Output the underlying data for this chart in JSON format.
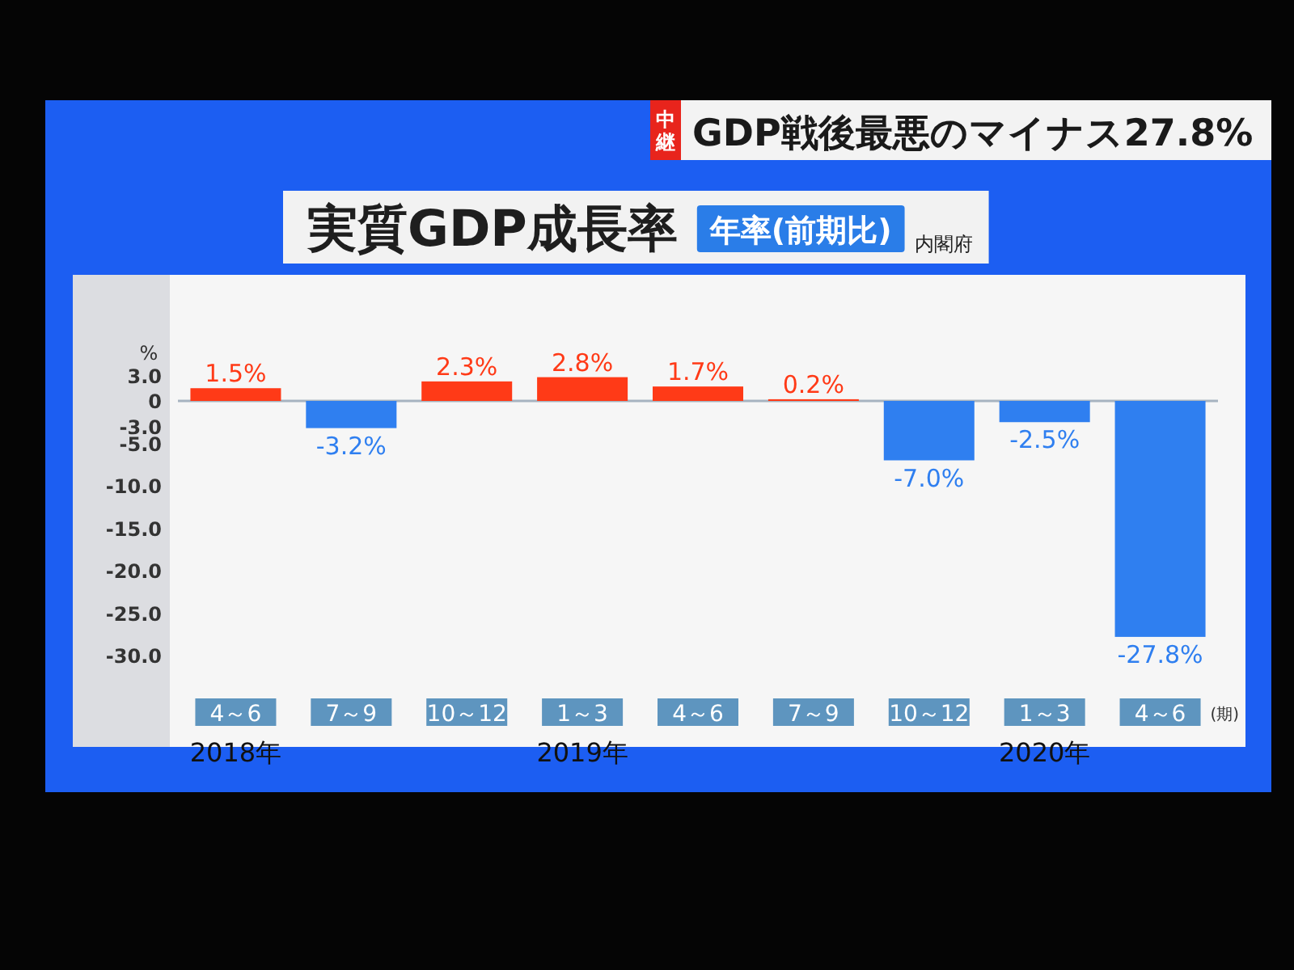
{
  "chart_data": {
    "type": "bar",
    "title": "実質GDP成長率",
    "subtitle": "年率(前期比)",
    "ylabel": "%",
    "xlabel": "(期)",
    "categories": [
      "4～6",
      "7～9",
      "10～12",
      "1～3",
      "4～6",
      "7～9",
      "10～12",
      "1～3",
      "4～6"
    ],
    "values": [
      1.5,
      -3.2,
      2.3,
      2.8,
      1.7,
      0.2,
      -7.0,
      -2.5,
      -27.8
    ],
    "colors": [
      "#ff3a17",
      "#2f7ff0",
      "#ff3a17",
      "#ff3a17",
      "#ff3a17",
      "#ff3a17",
      "#2f7ff0",
      "#2f7ff0",
      "#2f7ff0"
    ],
    "value_labels": [
      "1.5%",
      "-3.2%",
      "2.3%",
      "2.8%",
      "1.7%",
      "0.2%",
      "-7.0%",
      "-2.5%",
      "-27.8%"
    ],
    "ylim": [
      -30,
      3
    ],
    "yticks": [
      {
        "value": 3,
        "label": "3.0"
      },
      0,
      {
        "value": -3,
        "label": "-3.0"
      },
      {
        "value": -5,
        "label": "-5.0"
      },
      {
        "value": -10,
        "label": "-10.0"
      },
      {
        "value": -15,
        "label": "-15.0"
      },
      {
        "value": -20,
        "label": "-20.0"
      },
      {
        "value": -25,
        "label": "-25.0"
      },
      {
        "value": -30,
        "label": "-30.0"
      }
    ],
    "annotations": [
      "内閣府",
      "中継",
      "GDP戦後最悪のマイナス27.8%",
      "2018年",
      "2019年",
      "2020年"
    ]
  }
}
